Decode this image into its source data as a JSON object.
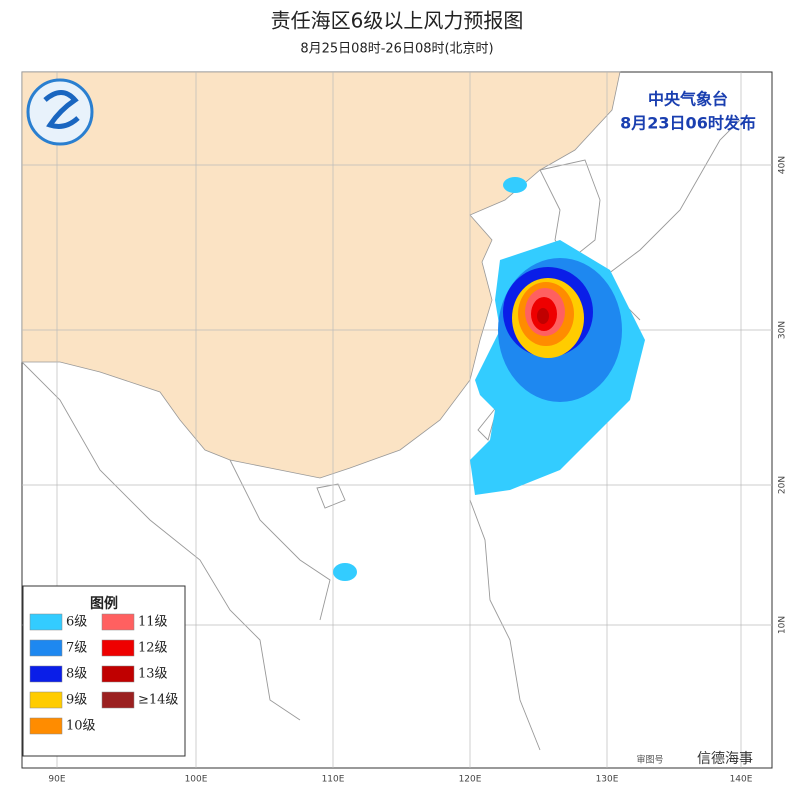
{
  "header": {
    "title": "责任海区6级以上风力预报图",
    "subtitle": "8月25日08时-26日08时(北京时)"
  },
  "issuer": {
    "agency": "中央气象台",
    "issued": "8月23日06时发布"
  },
  "legend": {
    "title": "图例",
    "items": [
      {
        "label": "6级",
        "color": "#33ccff"
      },
      {
        "label": "11级",
        "color": "#ff6060"
      },
      {
        "label": "7级",
        "color": "#1e88f0"
      },
      {
        "label": "12级",
        "color": "#ee0000"
      },
      {
        "label": "8级",
        "color": "#0a1ee8"
      },
      {
        "label": "13级",
        "color": "#c00000"
      },
      {
        "label": "9级",
        "color": "#ffcc00"
      },
      {
        "label": "≥14级",
        "color": "#9b2020"
      },
      {
        "label": "10级",
        "color": "#ff8c00"
      }
    ]
  },
  "axes": {
    "lon_labels": [
      "90E",
      "100E",
      "110E",
      "120E",
      "130E",
      "140E"
    ],
    "lat_labels": [
      "40N",
      "30N",
      "20N",
      "10N"
    ]
  },
  "footer": {
    "approval": "审图号",
    "watermark": "信德海事"
  }
}
